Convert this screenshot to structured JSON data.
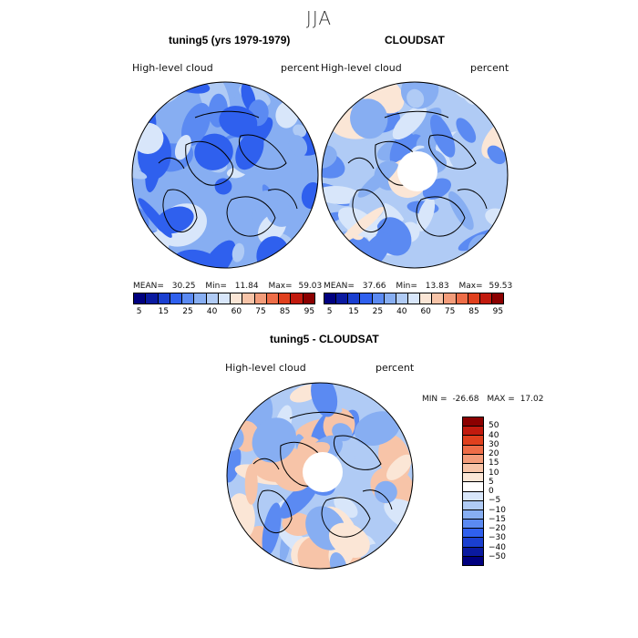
{
  "season": "JJA",
  "panels": [
    {
      "title": "tuning5 (yrs 1979-1979)",
      "left_label": "High-level cloud",
      "right_label": "percent",
      "stats": {
        "mean_label": "MEAN=",
        "mean": "30.25",
        "min_label": "Min=",
        "min": "11.84",
        "max_label": "Max=",
        "max": "59.03"
      },
      "has_pole_hole": false
    },
    {
      "title": "CLOUDSAT",
      "left_label": "High-level cloud",
      "right_label": "percent",
      "stats": {
        "mean_label": "MEAN=",
        "mean": "37.66",
        "min_label": "Min=",
        "min": "13.83",
        "max_label": "Max=",
        "max": "59.53"
      },
      "has_pole_hole": true
    }
  ],
  "abs_colorbar": {
    "colors": [
      "#00007f",
      "#0a1aa0",
      "#1a3fd0",
      "#2f60ee",
      "#5b8af2",
      "#87aef2",
      "#b0cbf5",
      "#d8e6fa",
      "#fbe6d6",
      "#f7c4a8",
      "#f39c7a",
      "#ee6d48",
      "#e0401e",
      "#c21a0e",
      "#8b0000"
    ],
    "tick_labels": [
      "5",
      "15",
      "25",
      "40",
      "60",
      "75",
      "85",
      "95"
    ]
  },
  "diff_panel": {
    "title": "tuning5 - CLOUDSAT",
    "left_label": "High-level cloud",
    "right_label": "percent",
    "min_label": "MIN =",
    "min": "-26.68",
    "max_label": "MAX =",
    "max": "17.02"
  },
  "diff_colorbar": {
    "colors": [
      "#8b0000",
      "#c21a0e",
      "#e0401e",
      "#ee6d48",
      "#f39c7a",
      "#f7c4a8",
      "#fbe6d6",
      "#ffffff",
      "#d8e6fa",
      "#b0cbf5",
      "#87aef2",
      "#5b8af2",
      "#2f60ee",
      "#1a3fd0",
      "#0a1aa0",
      "#00007f"
    ],
    "tick_labels": [
      "50",
      "40",
      "30",
      "20",
      "15",
      "10",
      "5",
      "0",
      "−5",
      "−10",
      "−15",
      "−20",
      "−30",
      "−40",
      "−50"
    ]
  },
  "map_colors": {
    "panel1": [
      "#87aef2",
      "#5b8af2",
      "#2f60ee",
      "#b0cbf5",
      "#d8e6fa"
    ],
    "panel2": [
      "#b0cbf5",
      "#d8e6fa",
      "#87aef2",
      "#5b8af2",
      "#fbe6d6"
    ],
    "diff": [
      "#b0cbf5",
      "#d8e6fa",
      "#87aef2",
      "#fbe6d6",
      "#f7c4a8",
      "#5b8af2"
    ]
  }
}
